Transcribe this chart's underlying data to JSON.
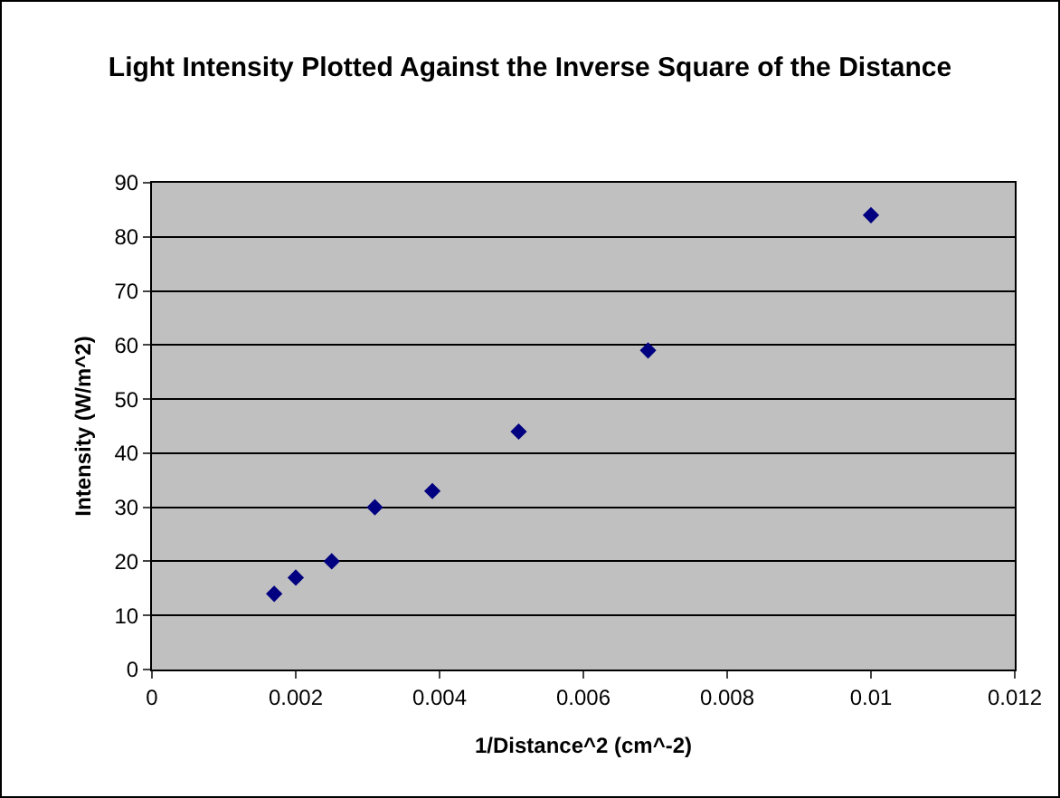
{
  "chart_data": {
    "type": "scatter",
    "title": "Light Intensity Plotted Against the Inverse Square of the Distance",
    "xlabel": "1/Distance^2 (cm^-2)",
    "ylabel": "Intensity (W/m^2)",
    "x": [
      0.0017,
      0.002,
      0.0025,
      0.0031,
      0.0039,
      0.0051,
      0.0069,
      0.01
    ],
    "series": [
      {
        "color": "#000080",
        "values": [
          14,
          17,
          20,
          30,
          33,
          44,
          59,
          84
        ]
      }
    ],
    "xlim": [
      0,
      0.012
    ],
    "xticks": [
      0,
      0.002,
      0.004,
      0.006,
      0.008,
      0.01,
      0.012
    ],
    "ylim": [
      0,
      90
    ],
    "yticks": [
      0,
      10,
      20,
      30,
      40,
      50,
      60,
      70,
      80,
      90
    ],
    "grid": "y",
    "marker": "diamond",
    "legend": false
  }
}
